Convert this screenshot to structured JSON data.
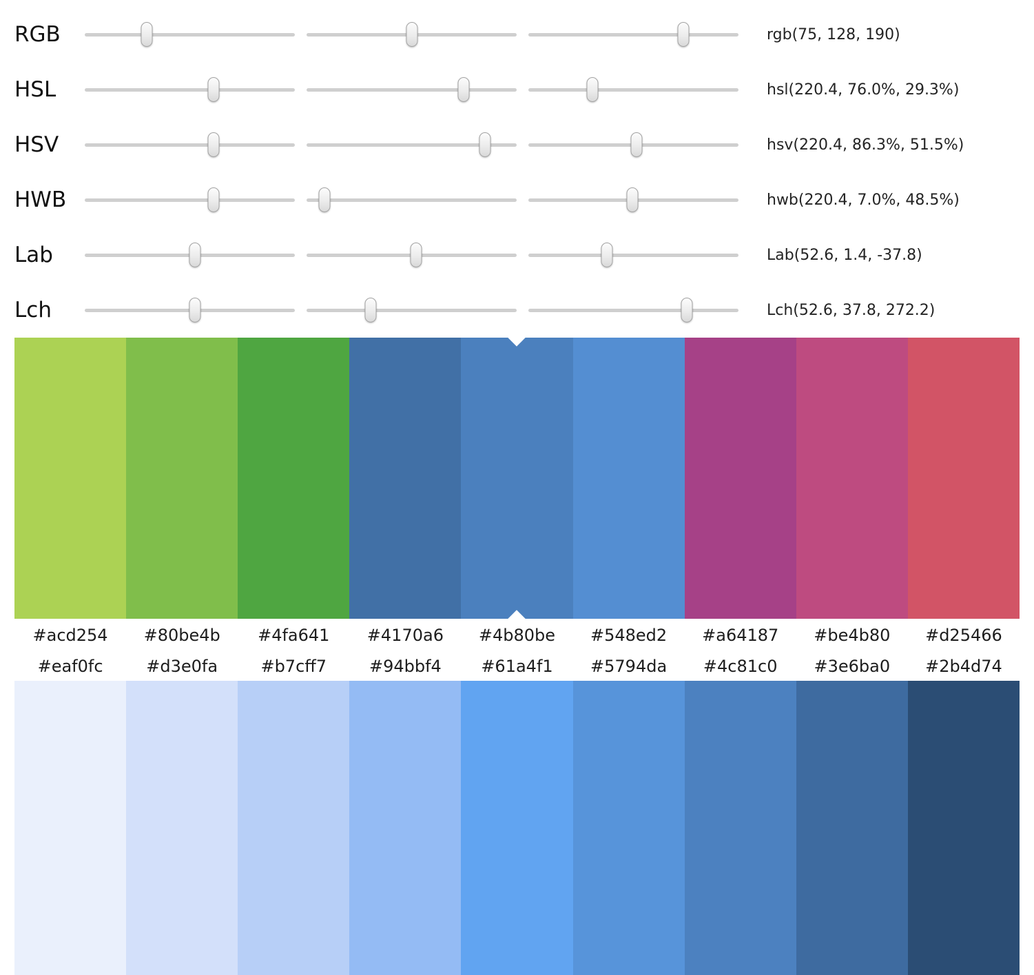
{
  "page": {
    "background": "#ffffff"
  },
  "sliders": [
    {
      "id": "rgb",
      "label": "RGB",
      "value": "rgb(75, 128, 190)",
      "thumbs": [
        29.4,
        50.2,
        73.8
      ]
    },
    {
      "id": "hsl",
      "label": "HSL",
      "value": "hsl(220.4, 76.0%, 29.3%)",
      "thumbs": [
        61.2,
        74.8,
        30.5
      ]
    },
    {
      "id": "hsv",
      "label": "HSV",
      "value": "hsv(220.4, 86.3%, 51.5%)",
      "thumbs": [
        61.2,
        85.0,
        51.5
      ]
    },
    {
      "id": "hwb",
      "label": "HWB",
      "value": "hwb(220.4, 7.0%, 48.5%)",
      "thumbs": [
        61.2,
        8.5,
        49.5
      ]
    },
    {
      "id": "lab",
      "label": "Lab",
      "value": "Lab(52.6, 1.4, -37.8)",
      "thumbs": [
        52.5,
        52.0,
        37.5
      ]
    },
    {
      "id": "lch",
      "label": "Lch",
      "value": "Lch(52.6, 37.8, 272.2)",
      "thumbs": [
        52.5,
        30.5,
        75.5
      ]
    }
  ],
  "hue_palette": {
    "selected_index": 4,
    "marker_color": "#ffffff",
    "swatches": [
      "#acd254",
      "#80be4b",
      "#4fa641",
      "#4170a6",
      "#4b80be",
      "#548ed2",
      "#a64187",
      "#be4b80",
      "#d25466"
    ]
  },
  "tint_palette": {
    "swatches": [
      "#eaf0fc",
      "#d3e0fa",
      "#b7cff7",
      "#94bbf4",
      "#61a4f1",
      "#5794da",
      "#4c81c0",
      "#3e6ba0",
      "#2b4d74"
    ]
  }
}
